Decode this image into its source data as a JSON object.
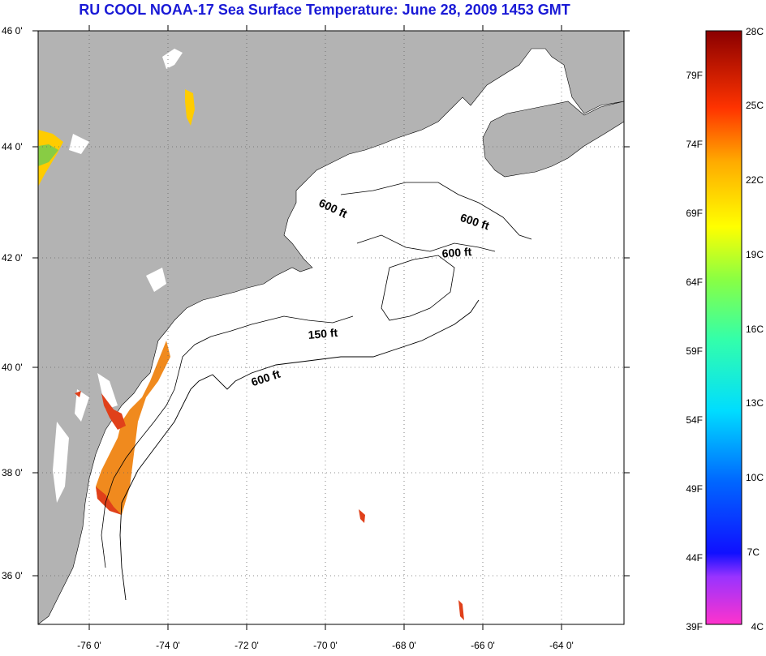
{
  "title": "RU COOL  NOAA-17  Sea Surface Temperature:  June 28, 2009 1453 GMT",
  "lat_labels": [
    "46 0'",
    "44 0'",
    "42 0'",
    "40 0'",
    "38 0'",
    "36 0'"
  ],
  "lon_labels": [
    "-76 0'",
    "-74 0'",
    "-72 0'",
    "-70 0'",
    "-68 0'",
    "-66 0'",
    "-64 0'"
  ],
  "contours": {
    "c1": "600 ft",
    "c2": "600 ft",
    "c3": "600 ft",
    "c4": "150 ft",
    "c5": "600 ft"
  },
  "colorbar": {
    "fahrenheit": [
      "79F",
      "74F",
      "69F",
      "64F",
      "59F",
      "54F",
      "49F",
      "44F",
      "39F"
    ],
    "celsius": [
      "28C",
      "25C",
      "22C",
      "19C",
      "16C",
      "13C",
      "10C",
      "7C",
      "4C"
    ]
  },
  "colors": {
    "title": "#1a1ad6",
    "land": "#b3b3b3",
    "ocean": "#ffffff",
    "sst_warm": "#f08a1e",
    "sst_hot": "#e0401a"
  }
}
